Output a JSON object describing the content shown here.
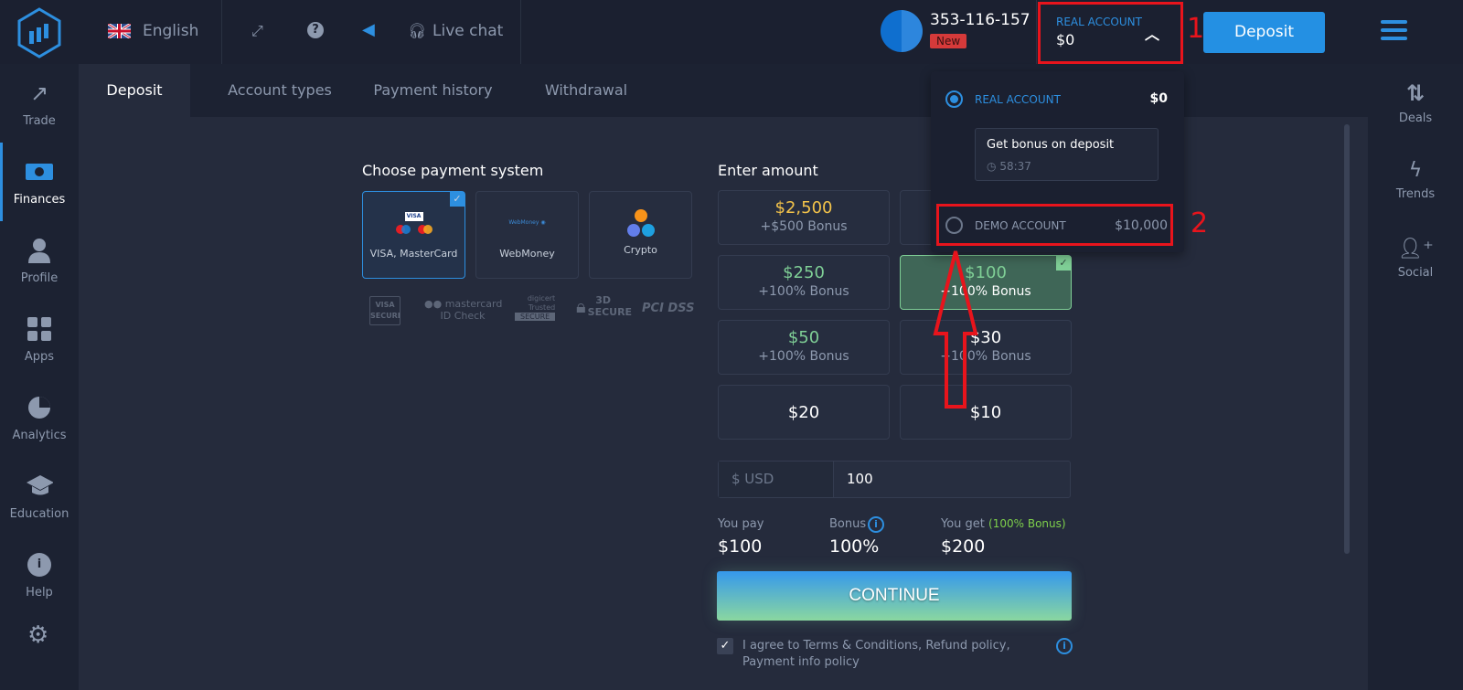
{
  "header": {
    "language": "English",
    "live_chat": "Live chat",
    "user_id": "353-116-157",
    "user_badge": "New",
    "account_label": "REAL ACCOUNT",
    "account_balance": "$0",
    "deposit_button": "Deposit"
  },
  "sidebar": {
    "items": [
      {
        "label": "Trade",
        "icon": "trend-up-icon"
      },
      {
        "label": "Finances",
        "icon": "money-icon"
      },
      {
        "label": "Profile",
        "icon": "user-icon"
      },
      {
        "label": "Apps",
        "icon": "grid-icon"
      },
      {
        "label": "Analytics",
        "icon": "pie-icon"
      },
      {
        "label": "Education",
        "icon": "graduation-cap-icon"
      },
      {
        "label": "Help",
        "icon": "info-icon"
      }
    ]
  },
  "tabs": [
    "Deposit",
    "Account types",
    "Payment history",
    "Withdrawal"
  ],
  "right_panel": {
    "items": [
      {
        "label": "Deals"
      },
      {
        "label": "Trends"
      },
      {
        "label": "Social"
      }
    ]
  },
  "payment": {
    "title": "Choose payment system",
    "methods": [
      "VISA, MasterCard",
      "WebMoney",
      "Crypto"
    ],
    "selected": 0,
    "logo_webmoney": "WebMoney",
    "trust_badges": [
      "VISA SECURE",
      "mastercard ID Check",
      "digicert Trusted SECURE",
      "3D SECURE",
      "PCI DSS"
    ]
  },
  "amount": {
    "title": "Enter amount",
    "options": [
      {
        "value": "$2,500",
        "bonus": "+$500 Bonus"
      },
      {
        "value": "",
        "bonus": ""
      },
      {
        "value": "$250",
        "bonus": "+100% Bonus"
      },
      {
        "value": "$100",
        "bonus": "+100% Bonus"
      },
      {
        "value": "$50",
        "bonus": "+100% Bonus"
      },
      {
        "value": "$30",
        "bonus": "+100% Bonus"
      },
      {
        "value": "$20",
        "bonus": ""
      },
      {
        "value": "$10",
        "bonus": ""
      }
    ],
    "selected": "$100",
    "currency": "$ USD",
    "input_value": "100"
  },
  "summary": {
    "you_pay_label": "You pay",
    "you_pay": "$100",
    "bonus_label": "Bonus",
    "bonus": "100%",
    "you_get_label": "You get",
    "you_get_note": "(100% Bonus)",
    "you_get": "$200"
  },
  "continue_button": "CONTINUE",
  "agree_text": "I agree to Terms & Conditions, Refund policy, Payment info policy",
  "agree_checked": true,
  "dropdown": {
    "real_label": "REAL ACCOUNT",
    "real_balance": "$0",
    "bonus_title": "Get bonus on deposit",
    "bonus_timer": "58:37",
    "demo_label": "DEMO ACCOUNT",
    "demo_balance": "$10,000"
  },
  "annotations": {
    "step1": "1",
    "step2": "2"
  },
  "colors": {
    "accent": "#2d8fe0",
    "annotation": "#e8141c",
    "gold": "#f3c34a",
    "green": "#7fcf96"
  }
}
